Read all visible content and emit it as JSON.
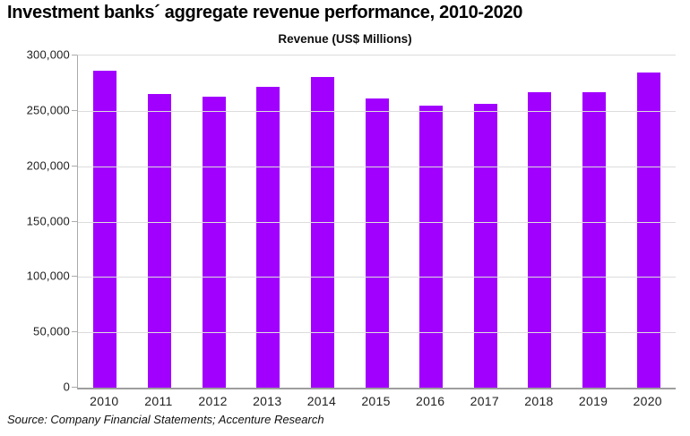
{
  "page": {
    "title": "Investment banks´ aggregate revenue performance, 2010-2020",
    "source": "Source: Company Financial Statements; Accenture Research"
  },
  "chart_data": {
    "type": "bar",
    "title": "Revenue (US$ Millions)",
    "xlabel": "",
    "ylabel": "Revenue (US$ Millions)",
    "categories": [
      "2010",
      "2011",
      "2012",
      "2013",
      "2014",
      "2015",
      "2016",
      "2017",
      "2018",
      "2019",
      "2020"
    ],
    "values": [
      286000,
      265500,
      262500,
      272000,
      281000,
      261500,
      255000,
      256000,
      266500,
      267000,
      285000
    ],
    "ylim": [
      0,
      300000
    ],
    "ytick_interval": 50000,
    "ytick_labels_top_to_bottom": [
      "300,000",
      "250,000",
      "200,000",
      "150,000",
      "100,000",
      "50,000",
      "0"
    ],
    "grid": true,
    "legend": "none",
    "colors": {
      "bar": "#A100FF",
      "gridline": "#dcdcdc",
      "axis_line": "#9e9e9e",
      "tick": "#ababab",
      "label_text": "#212121",
      "title_text": "#000000"
    }
  }
}
